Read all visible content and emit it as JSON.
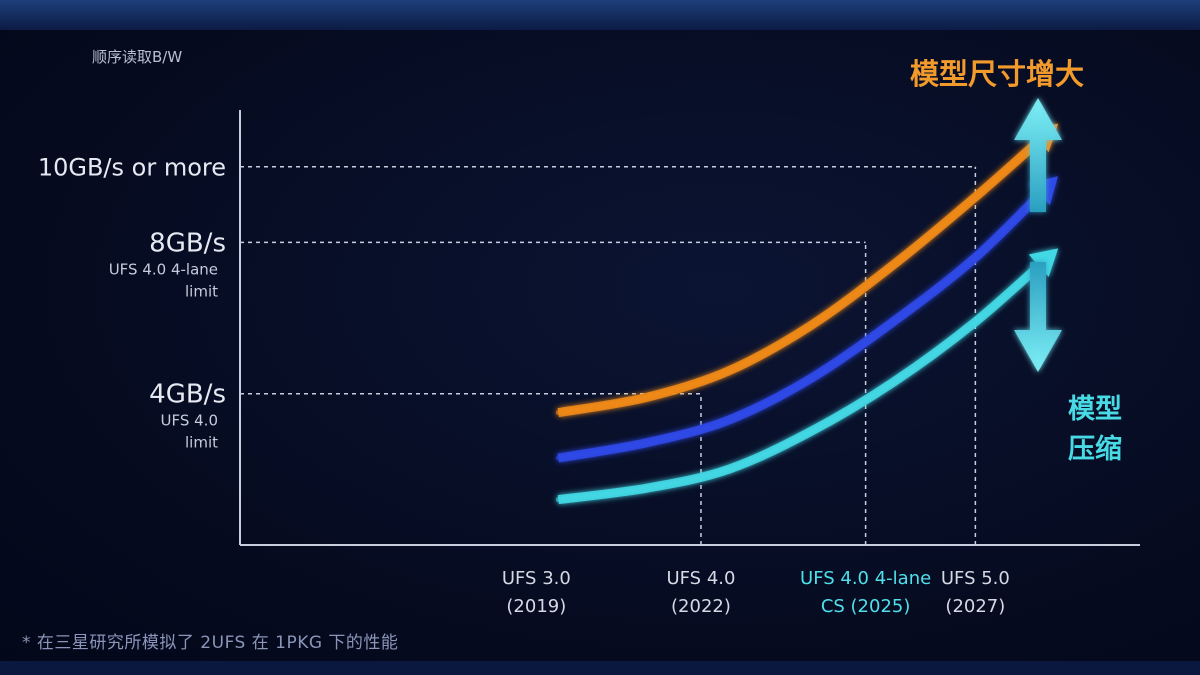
{
  "chart_data": {
    "type": "line",
    "ylabel": "顺序读取B/W",
    "y_ticks": [
      {
        "value": 10,
        "label": "10GB/s or more",
        "sublabel": ""
      },
      {
        "value": 8,
        "label": "8GB/s",
        "sublabel": "UFS 4.0 4-lane limit"
      },
      {
        "value": 4,
        "label": "4GB/s",
        "sublabel": "UFS 4.0 limit"
      }
    ],
    "ylim": [
      0,
      11.5
    ],
    "x_ticks": [
      {
        "x": 2019,
        "line1": "UFS 3.0",
        "line2": "(2019)",
        "color": "#d6d9e4",
        "guide_to": null
      },
      {
        "x": 2022,
        "line1": "UFS 4.0",
        "line2": "(2022)",
        "color": "#d6d9e4",
        "guide_to": 4
      },
      {
        "x": 2025,
        "line1": "UFS 4.0 4-lane",
        "line2": "CS (2025)",
        "color": "#4fe0ec",
        "guide_to": 8
      },
      {
        "x": 2027,
        "line1": "UFS 5.0",
        "line2": "(2027)",
        "color": "#d6d9e4",
        "guide_to": 10
      }
    ],
    "xlim": [
      2013.6,
      2030
    ],
    "series": [
      {
        "color": "#f08a1a",
        "x": [
          2019.4,
          2021,
          2022.5,
          2024,
          2025.5,
          2027,
          2028.4
        ],
        "y": [
          3.5,
          3.9,
          4.6,
          5.8,
          7.4,
          9.2,
          11.0
        ]
      },
      {
        "color": "#2f49e8",
        "x": [
          2019.4,
          2021,
          2022.5,
          2024,
          2025.5,
          2027,
          2028.4
        ],
        "y": [
          2.3,
          2.7,
          3.3,
          4.4,
          5.9,
          7.6,
          9.6
        ]
      },
      {
        "color": "#43d8e6",
        "x": [
          2019.4,
          2021,
          2022.5,
          2024,
          2025.5,
          2027,
          2028.4
        ],
        "y": [
          1.2,
          1.5,
          2.0,
          3.0,
          4.3,
          5.9,
          7.7
        ]
      }
    ],
    "annotations": {
      "top": "模型尺寸增大",
      "bottom_line1": "模型",
      "bottom_line2": "压缩",
      "top_color": "#f29a2c",
      "bottom_color": "#48dbe6"
    }
  },
  "footnote": "* 在三星研究所模拟了 2UFS 在 1PKG 下的性能"
}
